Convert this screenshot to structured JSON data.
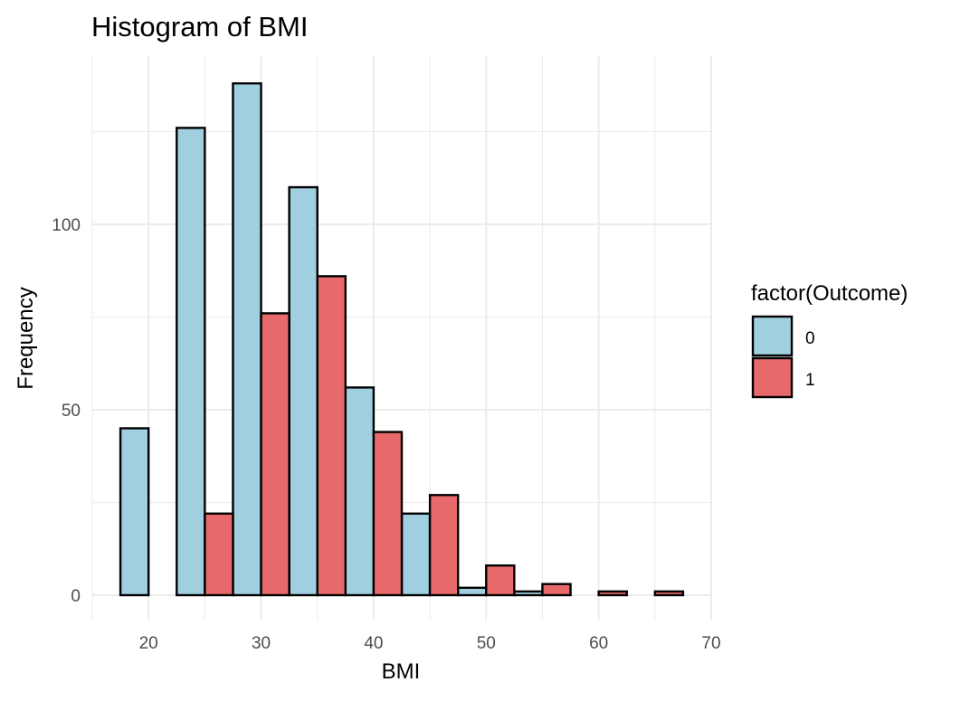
{
  "chart_data": {
    "type": "bar",
    "title": "Histogram of BMI",
    "xlabel": "BMI",
    "ylabel": "Frequency",
    "xlim": [
      15,
      70
    ],
    "ylim": [
      0,
      140
    ],
    "x_ticks": [
      20,
      30,
      40,
      50,
      60,
      70
    ],
    "y_ticks": [
      0,
      50,
      100
    ],
    "grid": true,
    "legend": {
      "title": "factor(Outcome)",
      "placement": "right"
    },
    "bin_width": 5,
    "series": [
      {
        "name": "0",
        "color": "#A0CFE0",
        "bins": [
          {
            "x0": 17.5,
            "x1": 20,
            "count": 45
          },
          {
            "x0": 22.5,
            "x1": 25,
            "count": 126
          },
          {
            "x0": 27.5,
            "x1": 30,
            "count": 138
          },
          {
            "x0": 32.5,
            "x1": 35,
            "count": 110
          },
          {
            "x0": 37.5,
            "x1": 40,
            "count": 56
          },
          {
            "x0": 42.5,
            "x1": 45,
            "count": 22
          },
          {
            "x0": 47.5,
            "x1": 50,
            "count": 2
          },
          {
            "x0": 52.5,
            "x1": 55,
            "count": 1
          },
          {
            "x0": 57.5,
            "x1": 60,
            "count": 0
          },
          {
            "x0": 62.5,
            "x1": 65,
            "count": 0
          }
        ]
      },
      {
        "name": "1",
        "color": "#E8696B",
        "bins": [
          {
            "x0": 20,
            "x1": 22.5,
            "count": 0
          },
          {
            "x0": 25,
            "x1": 27.5,
            "count": 22
          },
          {
            "x0": 30,
            "x1": 32.5,
            "count": 76
          },
          {
            "x0": 35,
            "x1": 37.5,
            "count": 86
          },
          {
            "x0": 40,
            "x1": 42.5,
            "count": 44
          },
          {
            "x0": 45,
            "x1": 47.5,
            "count": 27
          },
          {
            "x0": 50,
            "x1": 52.5,
            "count": 8
          },
          {
            "x0": 55,
            "x1": 57.5,
            "count": 3
          },
          {
            "x0": 60,
            "x1": 62.5,
            "count": 1
          },
          {
            "x0": 65,
            "x1": 67.5,
            "count": 1
          }
        ]
      }
    ]
  }
}
